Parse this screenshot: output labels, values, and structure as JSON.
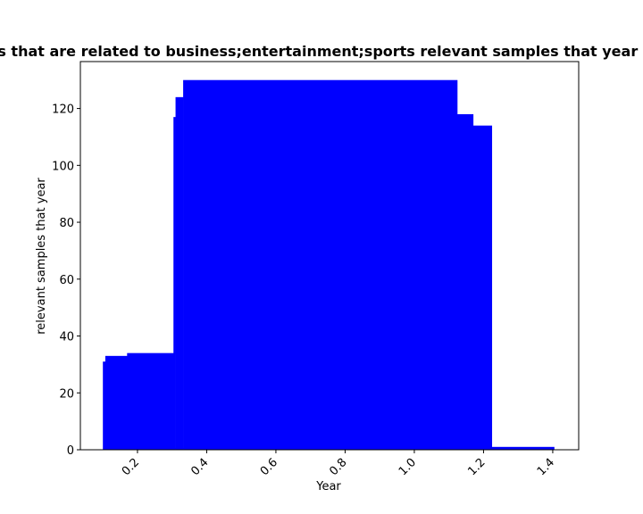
{
  "chart_data": {
    "type": "bar",
    "title": "Number of news articles that are related to business;entertainment;sports relevant samples that year in private news dataset",
    "xlabel": "Year",
    "ylabel": "relevant samples that year",
    "xlim": [
      0.035,
      1.475
    ],
    "ylim": [
      0,
      136.5
    ],
    "x_ticks": [
      0.2,
      0.4,
      0.6,
      0.8,
      1.0,
      1.2,
      1.4
    ],
    "x_tick_labels": [
      "0.2",
      "0.4",
      "0.6",
      "0.8",
      "1.0",
      "1.2",
      "1.4"
    ],
    "y_ticks": [
      0,
      20,
      40,
      60,
      80,
      100,
      120
    ],
    "y_tick_labels": [
      "0",
      "20",
      "40",
      "60",
      "80",
      "100",
      "120"
    ],
    "bar_color": "#0000ff",
    "grid": false,
    "bars": [
      {
        "x0": 0.1,
        "x1": 0.107,
        "value": 31
      },
      {
        "x0": 0.107,
        "x1": 0.17,
        "value": 33
      },
      {
        "x0": 0.17,
        "x1": 0.304,
        "value": 34
      },
      {
        "x0": 0.304,
        "x1": 0.31,
        "value": 117
      },
      {
        "x0": 0.31,
        "x1": 0.332,
        "value": 124
      },
      {
        "x0": 0.332,
        "x1": 1.124,
        "value": 130
      },
      {
        "x0": 1.124,
        "x1": 1.17,
        "value": 118
      },
      {
        "x0": 1.17,
        "x1": 1.224,
        "value": 114
      },
      {
        "x0": 1.224,
        "x1": 1.404,
        "value": 1
      }
    ]
  }
}
